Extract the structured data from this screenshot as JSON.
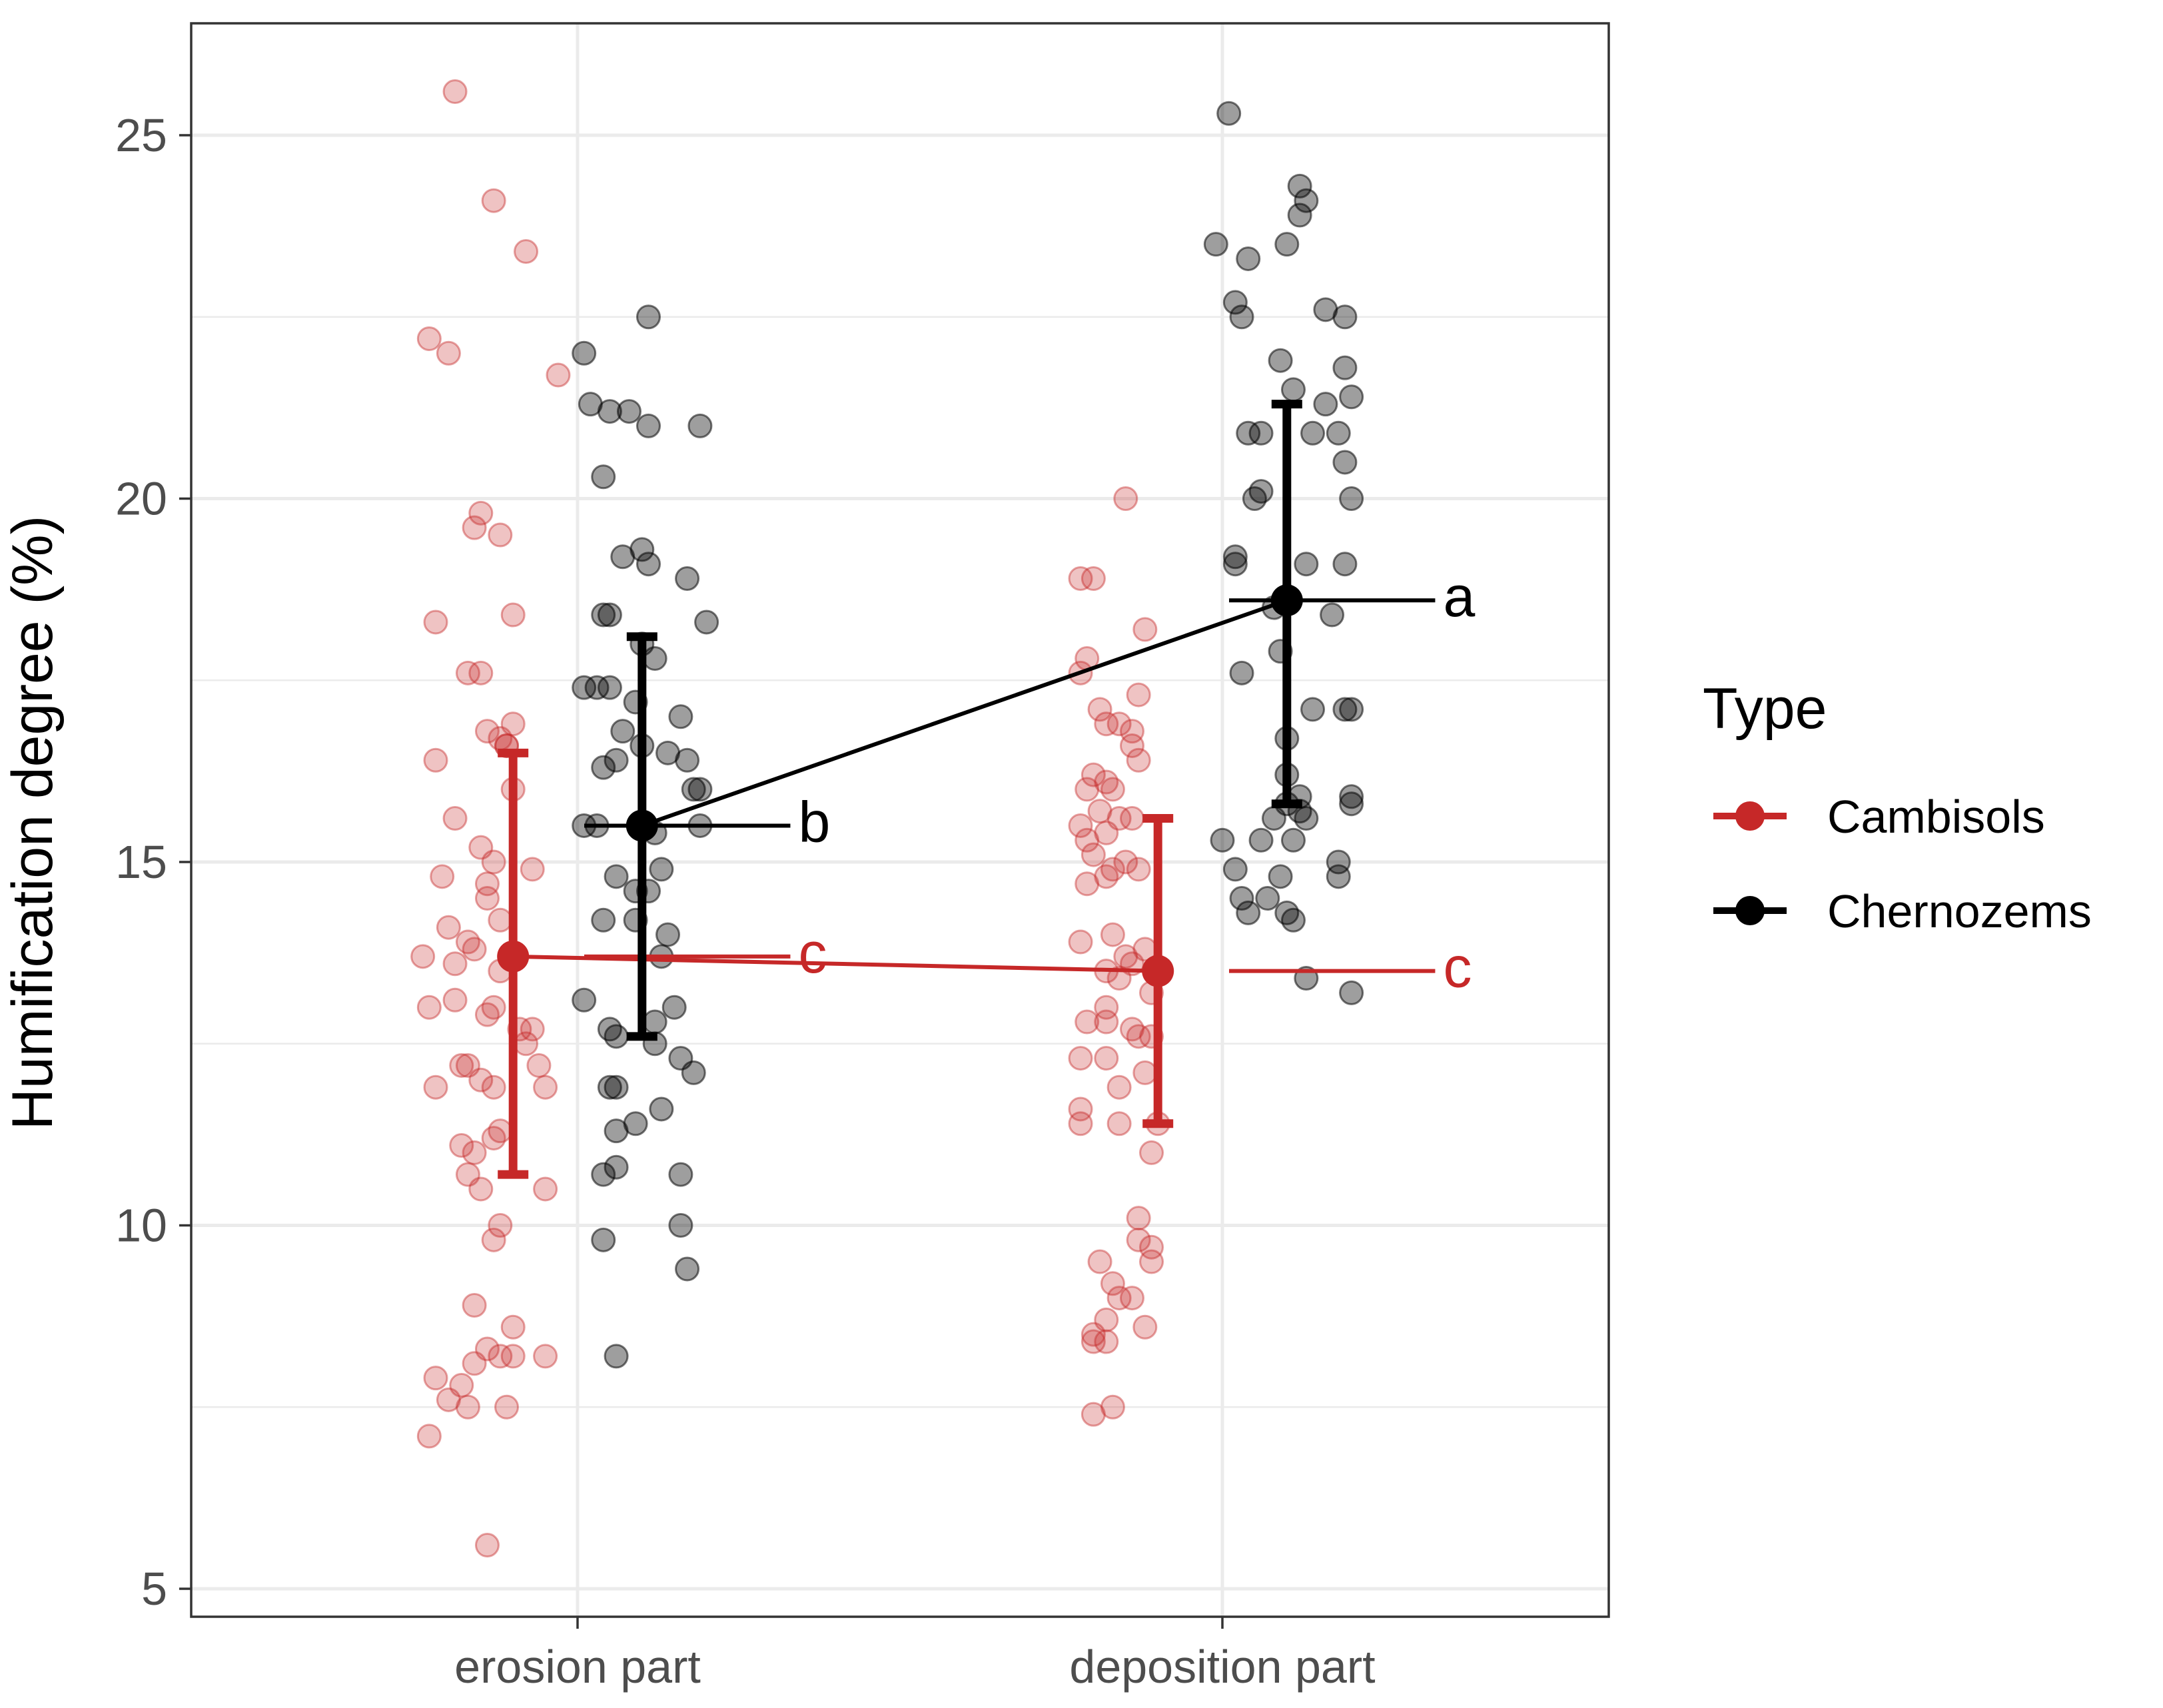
{
  "chart_data": {
    "type": "scatter",
    "title": "",
    "xlabel": "",
    "ylabel": "Humification degree (%)",
    "categories": [
      "erosion part",
      "deposition part"
    ],
    "ylim": [
      4.5,
      26.5
    ],
    "yticks": [
      5,
      10,
      15,
      20,
      25
    ],
    "legend": {
      "title": "Type",
      "position": "right"
    },
    "series": [
      {
        "name": "Cambisols",
        "color": "#c62828",
        "means": [
          13.7,
          13.5
        ],
        "error_low": [
          10.7,
          11.4
        ],
        "error_high": [
          16.5,
          15.6
        ],
        "letters": [
          "c",
          "c"
        ],
        "points": [
          [
            [
              0.81,
              25.6
            ],
            [
              0.87,
              24.1
            ],
            [
              0.92,
              23.4
            ],
            [
              0.77,
              22.2
            ],
            [
              0.8,
              22.0
            ],
            [
              0.97,
              21.7
            ],
            [
              0.85,
              19.8
            ],
            [
              0.84,
              19.6
            ],
            [
              0.88,
              19.5
            ],
            [
              0.9,
              18.4
            ],
            [
              0.78,
              18.3
            ],
            [
              0.83,
              17.6
            ],
            [
              0.85,
              17.6
            ],
            [
              0.86,
              16.8
            ],
            [
              0.88,
              16.7
            ],
            [
              0.9,
              16.9
            ],
            [
              0.78,
              16.4
            ],
            [
              0.89,
              16.6
            ],
            [
              0.89,
              16.6
            ],
            [
              0.9,
              16.0
            ],
            [
              0.81,
              15.6
            ],
            [
              0.85,
              15.2
            ],
            [
              0.87,
              15.0
            ],
            [
              0.93,
              14.9
            ],
            [
              0.79,
              14.8
            ],
            [
              0.86,
              14.7
            ],
            [
              0.86,
              14.5
            ],
            [
              0.88,
              14.2
            ],
            [
              0.8,
              14.1
            ],
            [
              0.76,
              13.7
            ],
            [
              0.81,
              13.6
            ],
            [
              0.83,
              13.9
            ],
            [
              0.84,
              13.8
            ],
            [
              0.88,
              13.5
            ],
            [
              0.77,
              13.0
            ],
            [
              0.81,
              13.1
            ],
            [
              0.86,
              12.9
            ],
            [
              0.87,
              13.0
            ],
            [
              0.91,
              12.7
            ],
            [
              0.92,
              12.5
            ],
            [
              0.93,
              12.7
            ],
            [
              0.82,
              12.2
            ],
            [
              0.83,
              12.2
            ],
            [
              0.85,
              12.0
            ],
            [
              0.87,
              11.9
            ],
            [
              0.94,
              12.2
            ],
            [
              0.95,
              11.9
            ],
            [
              0.78,
              11.9
            ],
            [
              0.82,
              11.1
            ],
            [
              0.84,
              11.0
            ],
            [
              0.87,
              11.2
            ],
            [
              0.88,
              11.3
            ],
            [
              0.83,
              10.7
            ],
            [
              0.85,
              10.5
            ],
            [
              0.95,
              10.5
            ],
            [
              0.88,
              10.0
            ],
            [
              0.87,
              9.8
            ],
            [
              0.84,
              8.9
            ],
            [
              0.9,
              8.6
            ],
            [
              0.86,
              8.3
            ],
            [
              0.88,
              8.2
            ],
            [
              0.9,
              8.2
            ],
            [
              0.95,
              8.2
            ],
            [
              0.78,
              7.9
            ],
            [
              0.82,
              7.8
            ],
            [
              0.84,
              8.1
            ],
            [
              0.8,
              7.6
            ],
            [
              0.83,
              7.5
            ],
            [
              0.89,
              7.5
            ],
            [
              0.77,
              7.1
            ],
            [
              0.86,
              5.6
            ]
          ],
          [
            [
              1.85,
              20.0
            ],
            [
              1.78,
              18.9
            ],
            [
              1.8,
              18.9
            ],
            [
              1.88,
              18.2
            ],
            [
              1.79,
              17.8
            ],
            [
              1.78,
              17.6
            ],
            [
              1.87,
              17.3
            ],
            [
              1.81,
              17.1
            ],
            [
              1.82,
              16.9
            ],
            [
              1.84,
              16.9
            ],
            [
              1.86,
              16.8
            ],
            [
              1.86,
              16.6
            ],
            [
              1.87,
              16.4
            ],
            [
              1.8,
              16.2
            ],
            [
              1.82,
              16.1
            ],
            [
              1.79,
              16.0
            ],
            [
              1.83,
              16.0
            ],
            [
              1.81,
              15.7
            ],
            [
              1.84,
              15.6
            ],
            [
              1.86,
              15.6
            ],
            [
              1.78,
              15.5
            ],
            [
              1.79,
              15.3
            ],
            [
              1.82,
              15.4
            ],
            [
              1.8,
              15.1
            ],
            [
              1.83,
              14.9
            ],
            [
              1.85,
              15.0
            ],
            [
              1.82,
              14.8
            ],
            [
              1.87,
              14.9
            ],
            [
              1.79,
              14.7
            ],
            [
              1.83,
              14.0
            ],
            [
              1.78,
              13.9
            ],
            [
              1.85,
              13.7
            ],
            [
              1.86,
              13.6
            ],
            [
              1.88,
              13.8
            ],
            [
              1.82,
              13.5
            ],
            [
              1.84,
              13.4
            ],
            [
              1.89,
              13.2
            ],
            [
              1.82,
              13.0
            ],
            [
              1.79,
              12.8
            ],
            [
              1.82,
              12.8
            ],
            [
              1.86,
              12.7
            ],
            [
              1.87,
              12.6
            ],
            [
              1.89,
              12.6
            ],
            [
              1.78,
              12.3
            ],
            [
              1.82,
              12.3
            ],
            [
              1.88,
              12.1
            ],
            [
              1.84,
              11.9
            ],
            [
              1.78,
              11.6
            ],
            [
              1.78,
              11.4
            ],
            [
              1.84,
              11.4
            ],
            [
              1.9,
              11.4
            ],
            [
              1.89,
              11.0
            ],
            [
              1.87,
              10.1
            ],
            [
              1.87,
              9.8
            ],
            [
              1.89,
              9.7
            ],
            [
              1.89,
              9.5
            ],
            [
              1.81,
              9.5
            ],
            [
              1.83,
              9.2
            ],
            [
              1.86,
              9.0
            ],
            [
              1.84,
              9.0
            ],
            [
              1.88,
              8.6
            ],
            [
              1.82,
              8.7
            ],
            [
              1.8,
              8.5
            ],
            [
              1.8,
              8.4
            ],
            [
              1.82,
              8.4
            ],
            [
              1.8,
              7.4
            ],
            [
              1.83,
              7.5
            ]
          ]
        ]
      },
      {
        "name": "Chernozems",
        "color": "#000000",
        "means": [
          15.5,
          18.6
        ],
        "error_low": [
          12.6,
          15.8
        ],
        "error_high": [
          18.1,
          21.3
        ],
        "letters": [
          "b",
          "a"
        ],
        "points": [
          [
            [
              1.01,
              22.0
            ],
            [
              1.11,
              22.5
            ],
            [
              1.02,
              21.3
            ],
            [
              1.05,
              21.2
            ],
            [
              1.08,
              21.2
            ],
            [
              1.11,
              21.0
            ],
            [
              1.19,
              21.0
            ],
            [
              1.04,
              20.3
            ],
            [
              1.1,
              19.3
            ],
            [
              1.07,
              19.2
            ],
            [
              1.11,
              19.1
            ],
            [
              1.17,
              18.9
            ],
            [
              1.2,
              18.3
            ],
            [
              1.04,
              18.4
            ],
            [
              1.05,
              18.4
            ],
            [
              1.1,
              18.0
            ],
            [
              1.12,
              17.8
            ],
            [
              1.01,
              17.4
            ],
            [
              1.03,
              17.4
            ],
            [
              1.05,
              17.4
            ],
            [
              1.09,
              17.2
            ],
            [
              1.16,
              17.0
            ],
            [
              1.07,
              16.8
            ],
            [
              1.1,
              16.6
            ],
            [
              1.14,
              16.5
            ],
            [
              1.17,
              16.4
            ],
            [
              1.04,
              16.3
            ],
            [
              1.06,
              16.4
            ],
            [
              1.18,
              16.0
            ],
            [
              1.19,
              16.0
            ],
            [
              1.01,
              15.5
            ],
            [
              1.03,
              15.5
            ],
            [
              1.12,
              15.4
            ],
            [
              1.19,
              15.5
            ],
            [
              1.13,
              14.9
            ],
            [
              1.06,
              14.8
            ],
            [
              1.09,
              14.6
            ],
            [
              1.11,
              14.6
            ],
            [
              1.09,
              14.2
            ],
            [
              1.04,
              14.2
            ],
            [
              1.14,
              14.0
            ],
            [
              1.13,
              13.7
            ],
            [
              1.01,
              13.1
            ],
            [
              1.15,
              13.0
            ],
            [
              1.12,
              12.8
            ],
            [
              1.05,
              12.7
            ],
            [
              1.06,
              12.6
            ],
            [
              1.12,
              12.5
            ],
            [
              1.16,
              12.3
            ],
            [
              1.18,
              12.1
            ],
            [
              1.05,
              11.9
            ],
            [
              1.06,
              11.9
            ],
            [
              1.13,
              11.6
            ],
            [
              1.09,
              11.4
            ],
            [
              1.06,
              11.3
            ],
            [
              1.06,
              10.8
            ],
            [
              1.04,
              10.7
            ],
            [
              1.16,
              10.7
            ],
            [
              1.16,
              10.0
            ],
            [
              1.04,
              9.8
            ],
            [
              1.17,
              9.4
            ],
            [
              1.06,
              8.2
            ]
          ],
          [
            [
              2.01,
              25.3
            ],
            [
              2.12,
              24.3
            ],
            [
              2.13,
              24.1
            ],
            [
              2.12,
              23.9
            ],
            [
              2.04,
              23.3
            ],
            [
              2.1,
              23.5
            ],
            [
              1.99,
              23.5
            ],
            [
              2.02,
              22.7
            ],
            [
              2.16,
              22.6
            ],
            [
              2.03,
              22.5
            ],
            [
              2.19,
              22.5
            ],
            [
              2.09,
              21.9
            ],
            [
              2.19,
              21.8
            ],
            [
              2.11,
              21.5
            ],
            [
              2.16,
              21.3
            ],
            [
              2.2,
              21.4
            ],
            [
              2.04,
              20.9
            ],
            [
              2.06,
              20.9
            ],
            [
              2.14,
              20.9
            ],
            [
              2.18,
              20.9
            ],
            [
              2.19,
              20.5
            ],
            [
              2.06,
              20.1
            ],
            [
              2.05,
              20.0
            ],
            [
              2.2,
              20.0
            ],
            [
              2.02,
              19.2
            ],
            [
              2.02,
              19.1
            ],
            [
              2.13,
              19.1
            ],
            [
              2.19,
              19.1
            ],
            [
              2.08,
              18.5
            ],
            [
              2.17,
              18.4
            ],
            [
              2.09,
              17.9
            ],
            [
              2.03,
              17.6
            ],
            [
              2.14,
              17.1
            ],
            [
              2.19,
              17.1
            ],
            [
              2.2,
              17.1
            ],
            [
              2.1,
              16.7
            ],
            [
              2.1,
              16.2
            ],
            [
              2.12,
              15.9
            ],
            [
              2.1,
              15.8
            ],
            [
              2.2,
              15.9
            ],
            [
              2.2,
              15.8
            ],
            [
              2.12,
              15.7
            ],
            [
              2.08,
              15.6
            ],
            [
              2.13,
              15.6
            ],
            [
              2.06,
              15.3
            ],
            [
              2.11,
              15.3
            ],
            [
              2.0,
              15.3
            ],
            [
              2.02,
              14.9
            ],
            [
              2.09,
              14.8
            ],
            [
              2.18,
              14.8
            ],
            [
              2.18,
              15.0
            ],
            [
              2.03,
              14.5
            ],
            [
              2.07,
              14.5
            ],
            [
              2.04,
              14.3
            ],
            [
              2.1,
              14.3
            ],
            [
              2.11,
              14.2
            ],
            [
              2.13,
              13.4
            ],
            [
              2.2,
              13.2
            ]
          ]
        ]
      }
    ]
  }
}
